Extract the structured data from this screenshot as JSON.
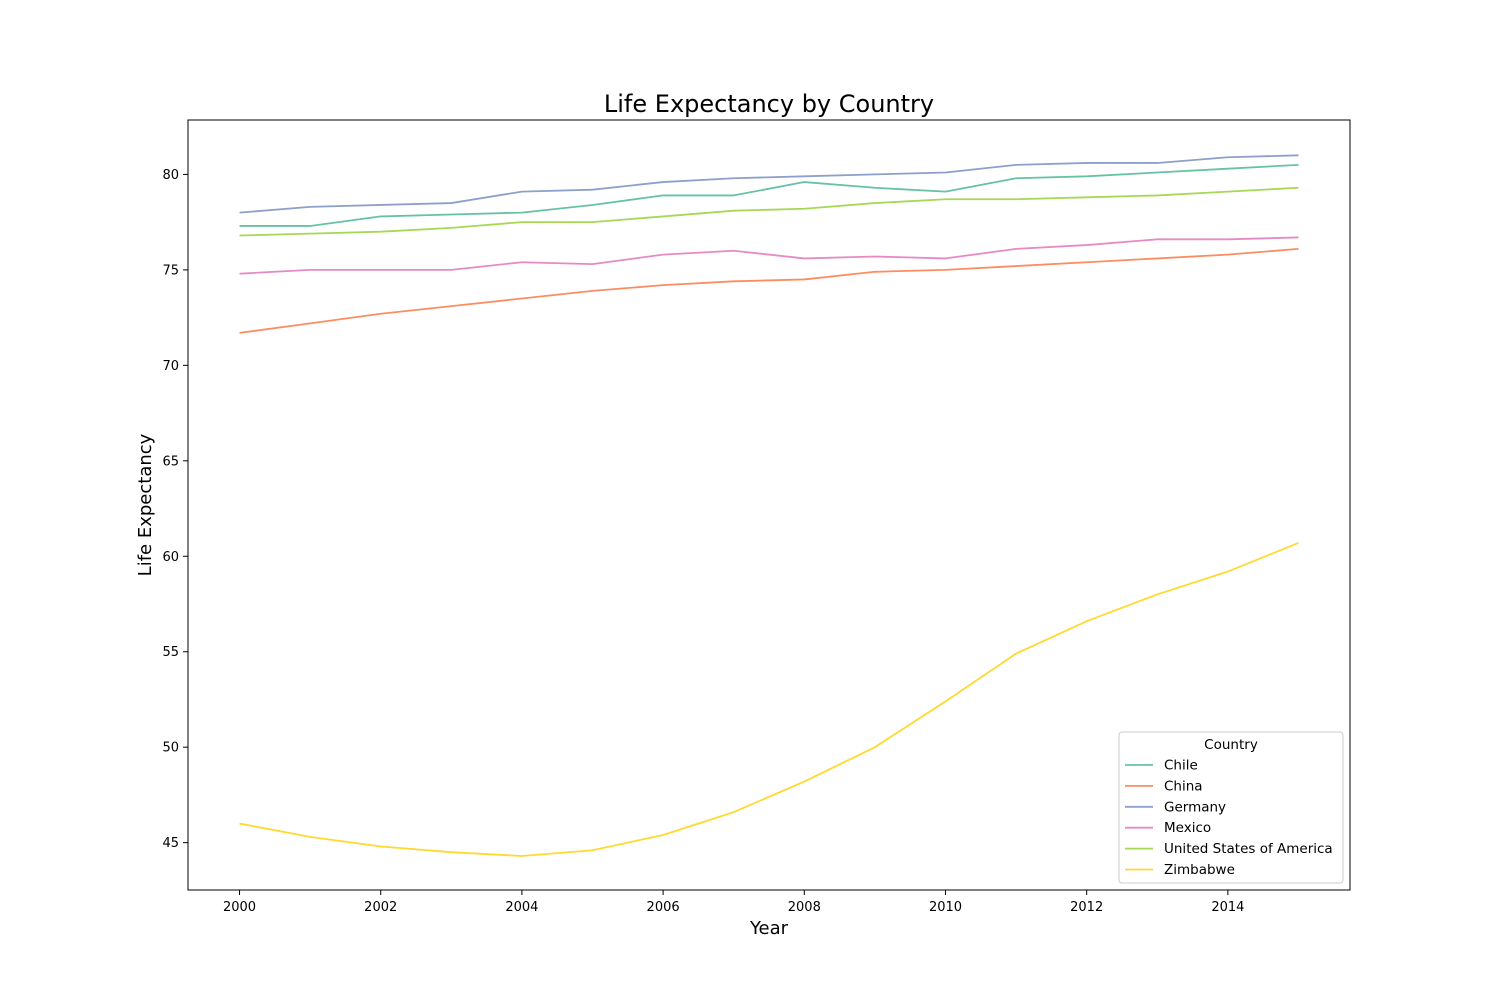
{
  "chart_data": {
    "type": "line",
    "title": "Life Expectancy by Country",
    "xlabel": "Year",
    "ylabel": "Life Expectancy",
    "xlim": [
      1999.27,
      2015.73
    ],
    "ylim": [
      42.52,
      82.85
    ],
    "xticks": [
      2000,
      2002,
      2004,
      2006,
      2008,
      2010,
      2012,
      2014
    ],
    "yticks": [
      45,
      50,
      55,
      60,
      65,
      70,
      75,
      80
    ],
    "grid": false,
    "legend": {
      "title": "Country",
      "position": "lower-right"
    },
    "x": [
      2000,
      2001,
      2002,
      2003,
      2004,
      2005,
      2006,
      2007,
      2008,
      2009,
      2010,
      2011,
      2012,
      2013,
      2014,
      2015
    ],
    "series": [
      {
        "name": "Chile",
        "color": "#66c2a5",
        "values": [
          77.3,
          77.3,
          77.8,
          77.9,
          78.0,
          78.4,
          78.9,
          78.9,
          79.6,
          79.3,
          79.1,
          79.8,
          79.9,
          80.1,
          80.3,
          80.5
        ]
      },
      {
        "name": "China",
        "color": "#fc8d62",
        "values": [
          71.7,
          72.2,
          72.7,
          73.1,
          73.5,
          73.9,
          74.2,
          74.4,
          74.5,
          74.9,
          75.0,
          75.2,
          75.4,
          75.6,
          75.8,
          76.1
        ]
      },
      {
        "name": "Germany",
        "color": "#8da0cb",
        "values": [
          78.0,
          78.3,
          78.4,
          78.5,
          79.1,
          79.2,
          79.6,
          79.8,
          79.9,
          80.0,
          80.1,
          80.5,
          80.6,
          80.6,
          80.9,
          81.0
        ]
      },
      {
        "name": "Mexico",
        "color": "#e78ac3",
        "values": [
          74.8,
          75.0,
          75.0,
          75.0,
          75.4,
          75.3,
          75.8,
          76.0,
          75.6,
          75.7,
          75.6,
          76.1,
          76.3,
          76.6,
          76.6,
          76.7
        ]
      },
      {
        "name": "United States of America",
        "color": "#a6d854",
        "values": [
          76.8,
          76.9,
          77.0,
          77.2,
          77.5,
          77.5,
          77.8,
          78.1,
          78.2,
          78.5,
          78.7,
          78.7,
          78.8,
          78.9,
          79.1,
          79.3
        ]
      },
      {
        "name": "Zimbabwe",
        "color": "#ffd92f",
        "values": [
          46.0,
          45.3,
          44.8,
          44.5,
          44.3,
          44.6,
          45.4,
          46.6,
          48.2,
          50.0,
          52.4,
          54.9,
          56.6,
          58.0,
          59.2,
          60.7
        ]
      }
    ]
  }
}
